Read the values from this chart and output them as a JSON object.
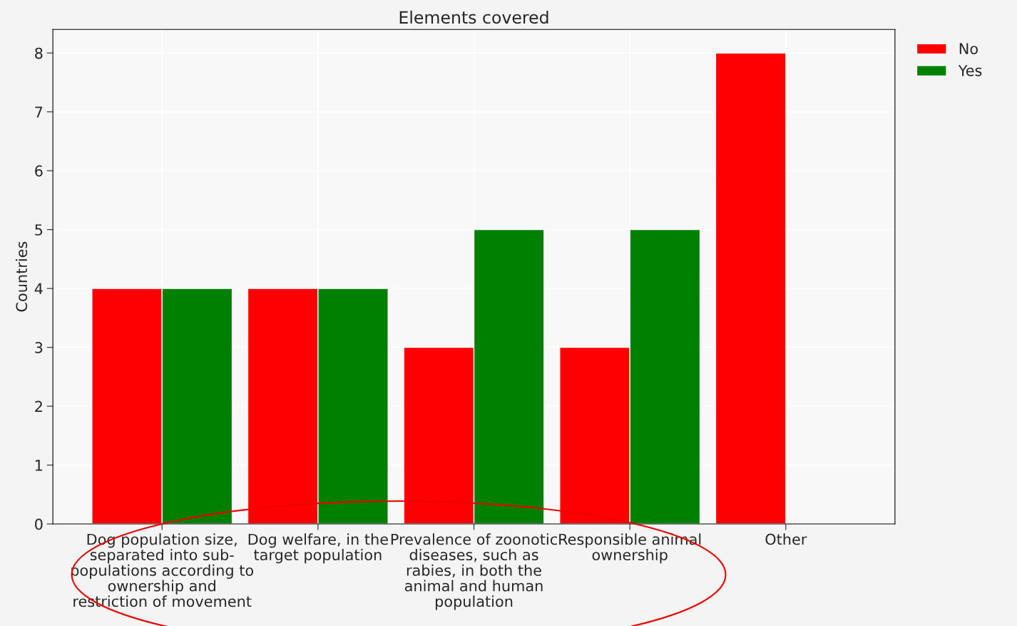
{
  "chart_data": {
    "type": "bar",
    "title": "Elements covered",
    "ylabel": "Countries",
    "categories": [
      "Dog population size,\nseparated into sub-\npopulations according to\nownership and\nrestriction of movement",
      "Dog welfare, in the\ntarget population",
      "Prevalence of zoonotic\ndiseases, such as\nrabies, in both the\nanimal and human\npopulation",
      "Responsible animal\nownership",
      "Other"
    ],
    "series": [
      {
        "name": "No",
        "color": "#ff0000",
        "values": [
          4,
          4,
          3,
          3,
          8
        ]
      },
      {
        "name": "Yes",
        "color": "#008000",
        "values": [
          4,
          4,
          5,
          5,
          null
        ]
      }
    ],
    "ylim": [
      0,
      8.4
    ],
    "yticks": [
      0,
      1,
      2,
      3,
      4,
      5,
      6,
      7,
      8
    ],
    "grid": true,
    "legend": "top right"
  }
}
